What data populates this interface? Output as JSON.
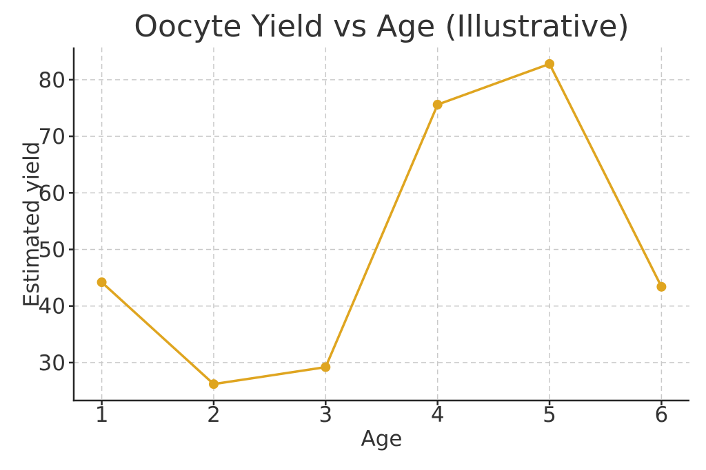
{
  "chart_data": {
    "type": "line",
    "title": "Oocyte Yield vs Age (Illustrative)",
    "xlabel": "Age",
    "ylabel": "Estimated yield",
    "x": [
      1,
      2,
      3,
      4,
      5,
      6
    ],
    "y": [
      44.2,
      26.2,
      29.2,
      75.6,
      82.8,
      43.4
    ],
    "xticks": [
      1,
      2,
      3,
      4,
      5,
      6
    ],
    "yticks": [
      30,
      40,
      50,
      60,
      70,
      80
    ],
    "xlim": [
      0.75,
      6.25
    ],
    "ylim": [
      23.3,
      85.7
    ],
    "grid": true,
    "grid_style": "dashed",
    "legend": "none",
    "line_color": "#DFA520",
    "marker_color": "#DFA520",
    "text_color": "#333333",
    "spine_color": "#262626",
    "grid_color": "#c9c9c9",
    "background_color": "#ffffff"
  }
}
